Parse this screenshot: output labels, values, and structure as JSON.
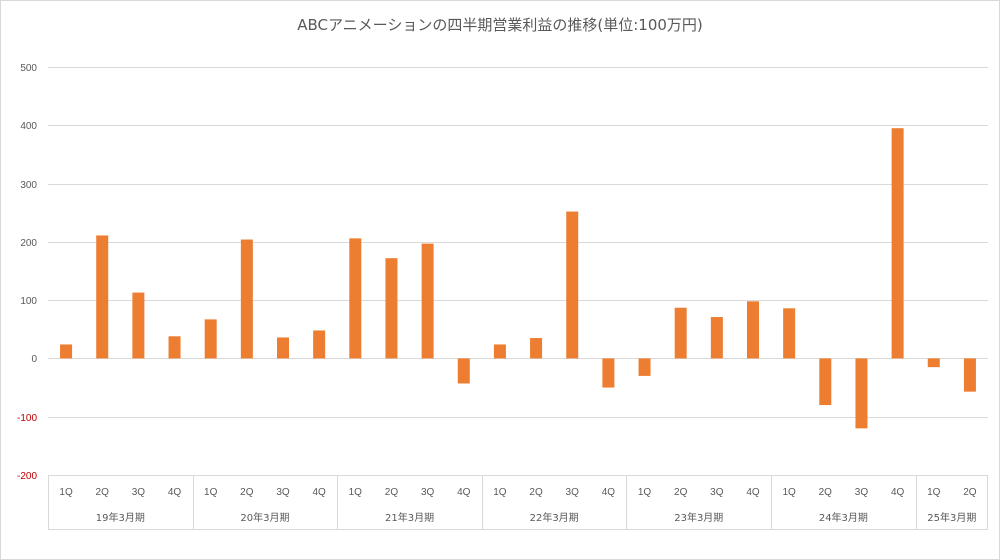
{
  "chart_data": {
    "type": "bar",
    "title": "ABCアニメーションの四半期営業利益の推移(単位:100万円)",
    "xlabel": "",
    "ylabel": "",
    "ylim": [
      -200,
      500
    ],
    "yticks": [
      500,
      400,
      300,
      200,
      100,
      0,
      -100,
      -200
    ],
    "negative_tick_color": "#c00000",
    "tick_color": "#595959",
    "bar_color": "#ed7d31",
    "grid": true,
    "legend": "none",
    "groups": [
      {
        "label": "19年3月期",
        "quarters": [
          "1Q",
          "2Q",
          "3Q",
          "4Q"
        ]
      },
      {
        "label": "20年3月期",
        "quarters": [
          "1Q",
          "2Q",
          "3Q",
          "4Q"
        ]
      },
      {
        "label": "21年3月期",
        "quarters": [
          "1Q",
          "2Q",
          "3Q",
          "4Q"
        ]
      },
      {
        "label": "22年3月期",
        "quarters": [
          "1Q",
          "2Q",
          "3Q",
          "4Q"
        ]
      },
      {
        "label": "23年3月期",
        "quarters": [
          "1Q",
          "2Q",
          "3Q",
          "4Q"
        ]
      },
      {
        "label": "24年3月期",
        "quarters": [
          "1Q",
          "2Q",
          "3Q",
          "4Q"
        ]
      },
      {
        "label": "25年3月期",
        "quarters": [
          "1Q",
          "2Q"
        ]
      }
    ],
    "values": [
      24,
      211,
      113,
      38,
      67,
      204,
      36,
      48,
      206,
      172,
      197,
      -43,
      24,
      35,
      252,
      -50,
      -30,
      87,
      71,
      98,
      86,
      -80,
      -120,
      395,
      -15,
      -57
    ]
  }
}
